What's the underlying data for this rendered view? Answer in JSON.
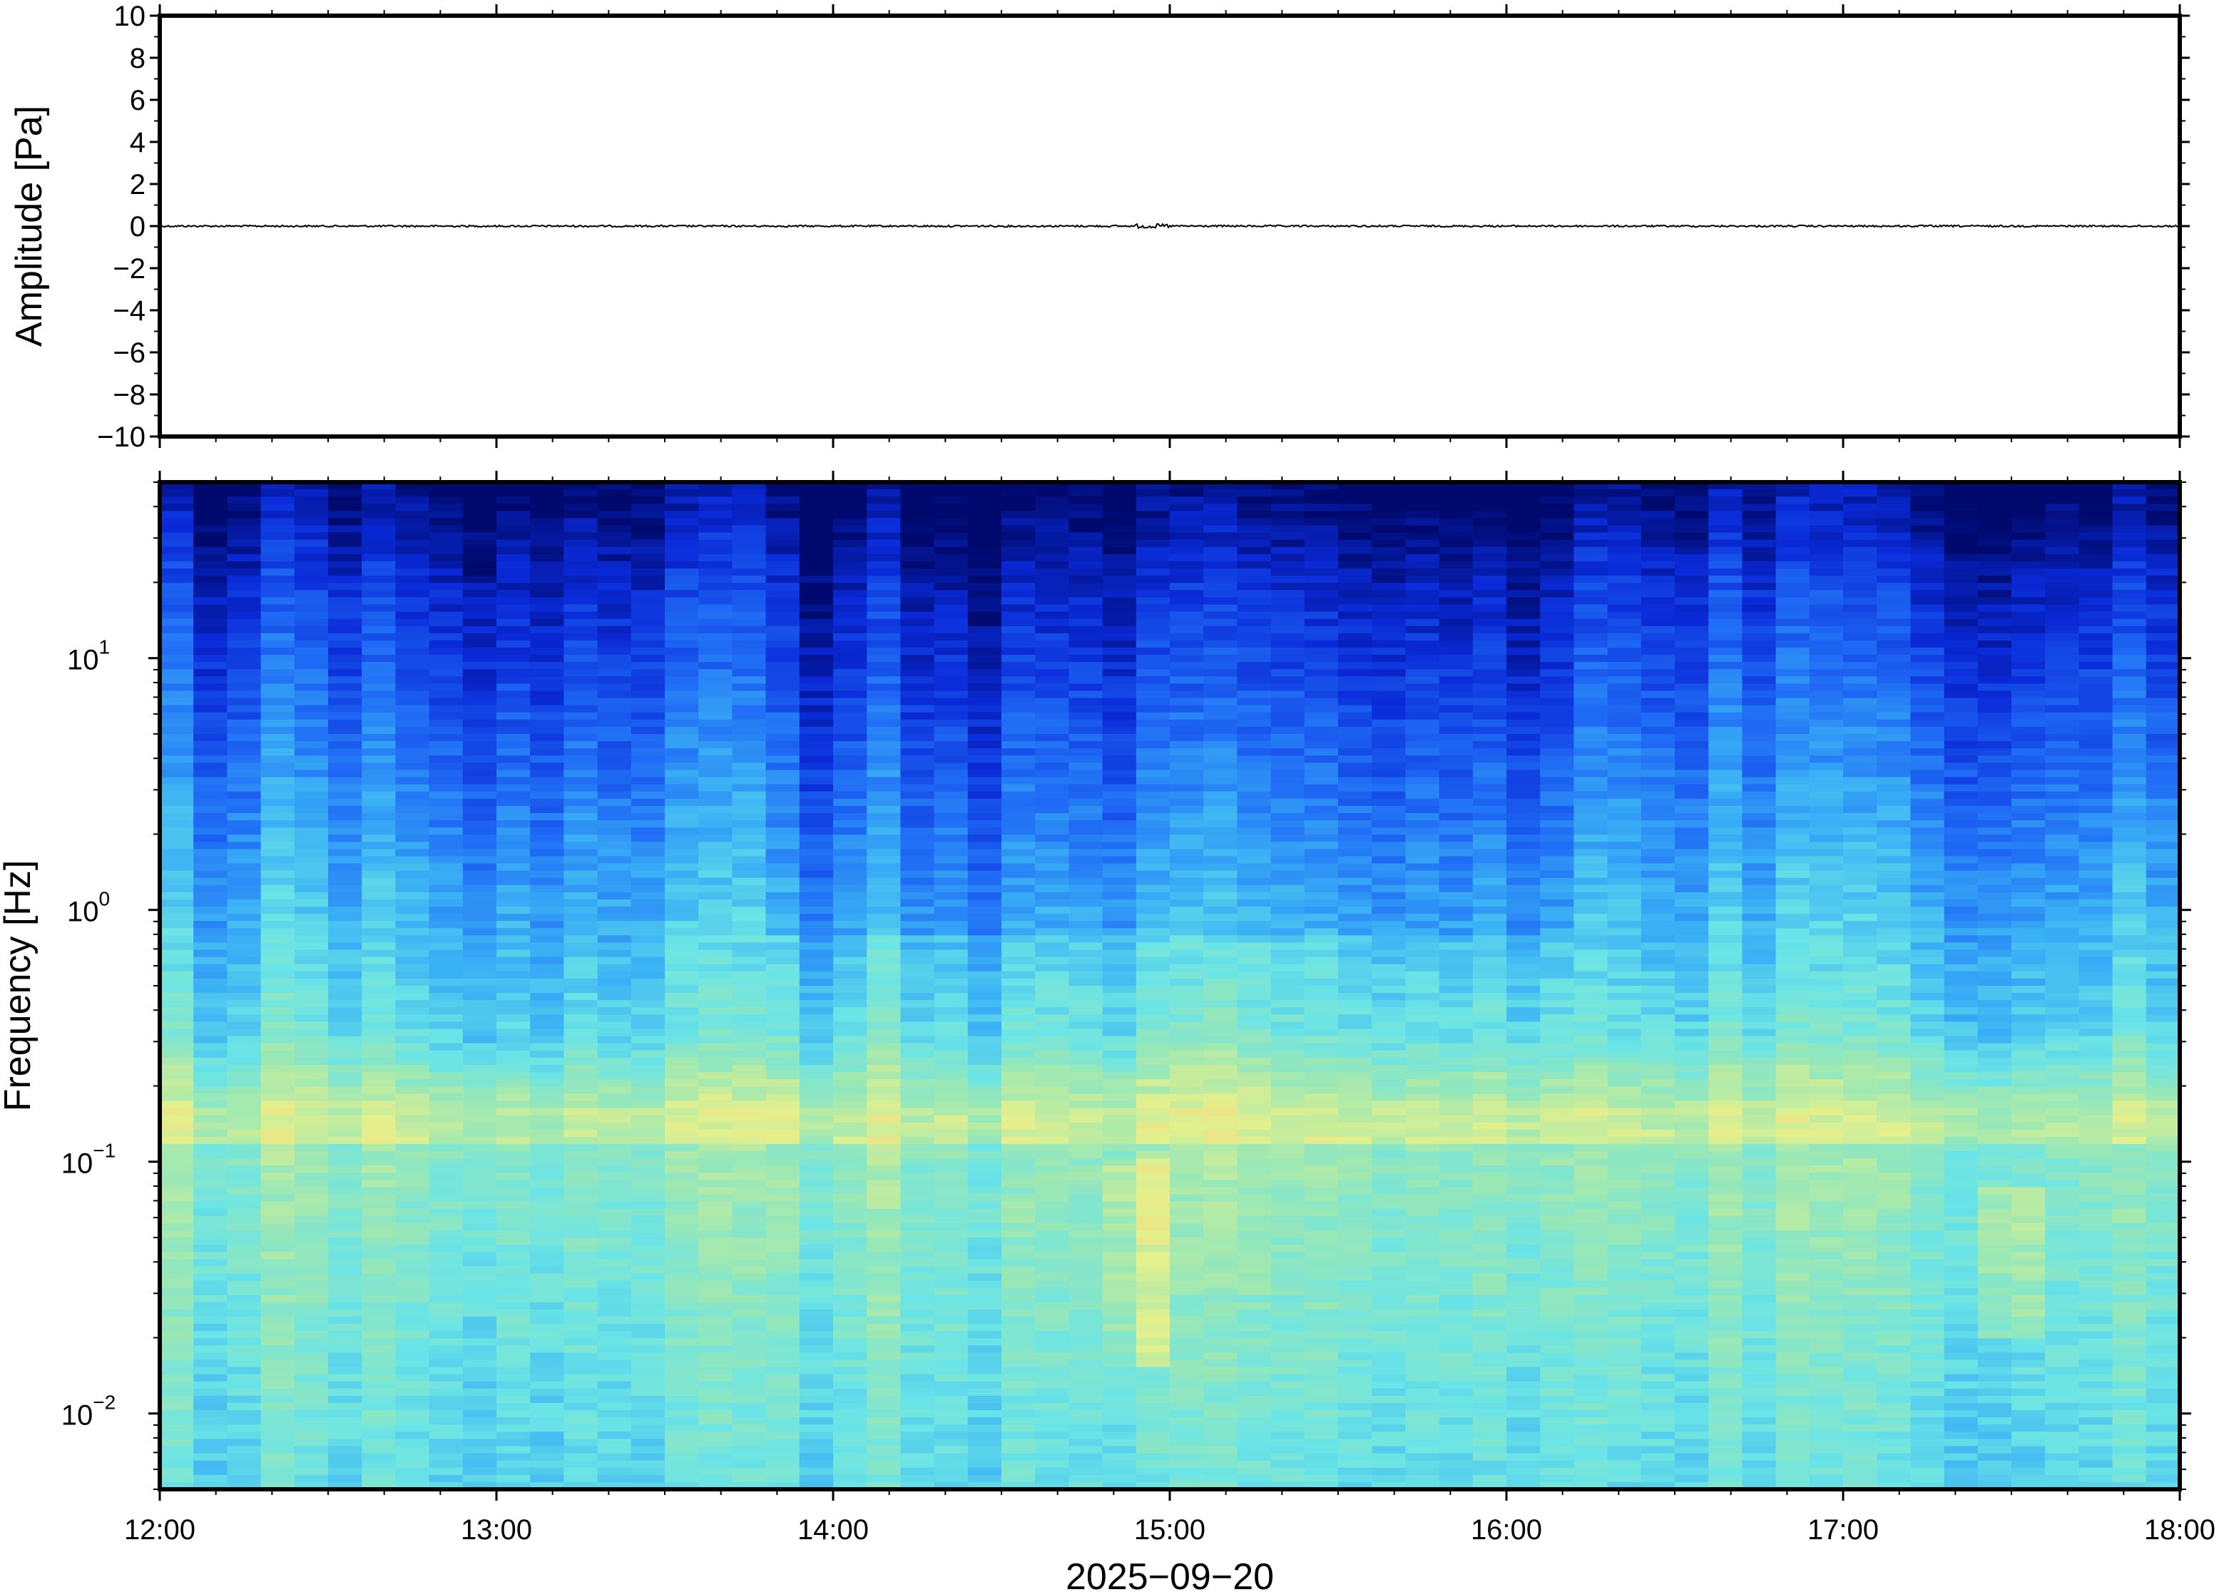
{
  "chart_data": [
    {
      "type": "line",
      "panel": "waveform",
      "ylabel": "Amplitude [Pa]",
      "ylim": [
        -10,
        10
      ],
      "yticks": [
        10,
        8,
        6,
        4,
        2,
        0,
        -2,
        -4,
        -6,
        -8,
        -10
      ],
      "ytick_labels": [
        "10",
        "8",
        "6",
        "4",
        "2",
        "0",
        "−2",
        "−4",
        "−6",
        "−8",
        "−10"
      ],
      "xlim": [
        "12:00",
        "18:00"
      ],
      "series": [
        {
          "color": "#000000",
          "description_values": "near-zero trace",
          "x": [
            "12:00",
            "18:00"
          ],
          "y": [
            0,
            0
          ]
        }
      ],
      "grid": false
    },
    {
      "type": "heatmap",
      "panel": "spectrogram",
      "ylabel": "Frequency [Hz]",
      "yscale": "log",
      "ylim": [
        0.005,
        50
      ],
      "ytick_labels": [
        {
          "base": "10",
          "exp": "1",
          "value": 10
        },
        {
          "base": "10",
          "exp": "0",
          "value": 1
        },
        {
          "base": "10",
          "exp": "−1",
          "value": 0.1
        },
        {
          "base": "10",
          "exp": "−2",
          "value": 0.01
        }
      ],
      "xlim": [
        "12:00",
        "18:00"
      ],
      "xticks": [
        "12:00",
        "13:00",
        "14:00",
        "15:00",
        "16:00",
        "17:00",
        "18:00"
      ],
      "xlabel": "2025−09−20",
      "colormap": [
        "#000a6e",
        "#0a2ad8",
        "#1f6bf5",
        "#3ab0f5",
        "#6ae4e6",
        "#9ce8b4",
        "#e4f08c",
        "#f5d482",
        "#f5b070"
      ],
      "time_columns": 60,
      "bright_events": [
        {
          "time": "14:55",
          "freq_range": [
            0.015,
            0.1
          ]
        },
        {
          "time": "17:30",
          "freq_range": [
            0.02,
            0.08
          ]
        }
      ],
      "grid": false
    }
  ]
}
